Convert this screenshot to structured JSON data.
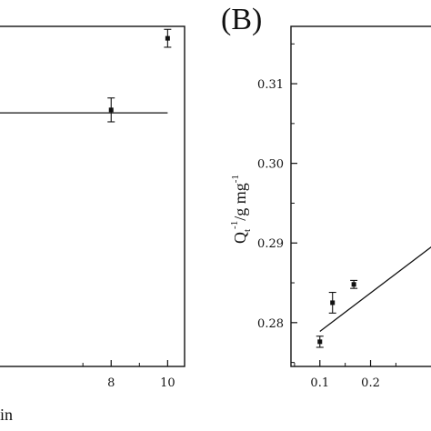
{
  "chart_data": [
    {
      "panel": "A",
      "type": "scatter",
      "title": "",
      "xlabel_fragment": "in",
      "ylabel": "",
      "xlim": [
        4.0,
        10.6
      ],
      "ylim": [
        0.95,
        1.52
      ],
      "xticks": [
        8,
        10
      ],
      "x_tick_labels": [
        "8",
        "10"
      ],
      "yticks": [],
      "series": [
        {
          "points": [
            {
              "x": 8,
              "y": 1.38,
              "err": 0.02
            },
            {
              "x": 10,
              "y": 1.5,
              "err": 0.015
            }
          ]
        }
      ],
      "fit_line": {
        "x": [
          4.0,
          10.0
        ],
        "y": [
          1.375,
          1.375
        ]
      }
    },
    {
      "panel": "B",
      "panel_label": "(B)",
      "type": "scatter",
      "title": "",
      "xlabel": "",
      "ylabel_parts": {
        "q": "Q",
        "sub": "t",
        "sup1": "-1",
        "mid": "/g mg",
        "sup2": "-1"
      },
      "xlim": [
        0.043,
        0.33
      ],
      "ylim": [
        0.2745,
        0.3172
      ],
      "xticks": [
        0.1,
        0.2
      ],
      "x_tick_labels": [
        "0.1",
        "0.2"
      ],
      "yticks": [
        0.28,
        0.29,
        0.3,
        0.31
      ],
      "y_tick_labels": [
        "0.28",
        "0.29",
        "0.30",
        "0.31"
      ],
      "series": [
        {
          "points": [
            {
              "x": 0.1,
              "y": 0.2776,
              "err": 0.0007
            },
            {
              "x": 0.125,
              "y": 0.2825,
              "err": 0.0013
            },
            {
              "x": 0.167,
              "y": 0.2848,
              "err": 0.0005
            }
          ]
        }
      ],
      "fit_line": {
        "x": [
          0.1,
          0.33
        ],
        "y": [
          0.2789,
          0.29
        ]
      }
    }
  ]
}
